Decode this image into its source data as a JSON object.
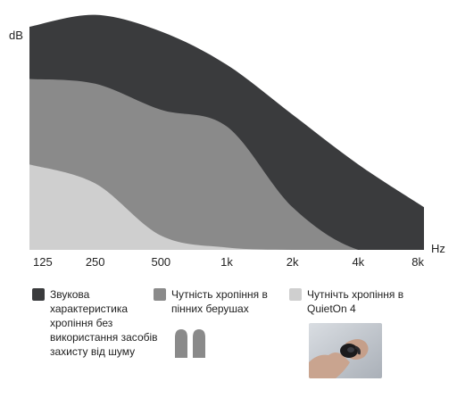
{
  "chart_data": {
    "type": "area",
    "ylabel": "dB",
    "xlabel": "Hz",
    "x_ticks": [
      "125",
      "250",
      "500",
      "1k",
      "2k",
      "4k",
      "8k"
    ],
    "y_ticks": [],
    "grid": false,
    "ylim": [
      0,
      100
    ],
    "series": [
      {
        "name": "Звукова характеристика хропіння без використання засобів захисту від шуму",
        "color": "#3a3b3d",
        "points": [
          [
            "125",
            94
          ],
          [
            "250",
            99
          ],
          [
            "500",
            92
          ],
          [
            "1k",
            78
          ],
          [
            "2k",
            57
          ],
          [
            "4k",
            36
          ],
          [
            "8k",
            18
          ]
        ]
      },
      {
        "name": "Чутність хропіння в пінних берушах",
        "color": "#8a8a8a",
        "points": [
          [
            "125",
            72
          ],
          [
            "250",
            70
          ],
          [
            "500",
            59
          ],
          [
            "1k",
            52
          ],
          [
            "2k",
            18
          ],
          [
            "4k",
            0
          ],
          [
            "8k",
            0
          ]
        ]
      },
      {
        "name": "Чутнічть хропіння в QuietOn 4",
        "color": "#cfcfcf",
        "points": [
          [
            "125",
            36
          ],
          [
            "250",
            28
          ],
          [
            "500",
            6
          ],
          [
            "1k",
            1
          ],
          [
            "2k",
            0
          ],
          [
            "4k",
            0
          ],
          [
            "8k",
            0
          ]
        ]
      }
    ]
  },
  "legend": {
    "item1": "Звукова характеристика хропіння без використання засобів захисту від шуму",
    "item2": "Чутність хропіння в пінних берушах",
    "item3": "Чутнічть хропіння в QuietOn 4"
  },
  "icons": {
    "earplugs": "foam-earplugs-icon",
    "photo": "quieton-earbud-photo"
  }
}
